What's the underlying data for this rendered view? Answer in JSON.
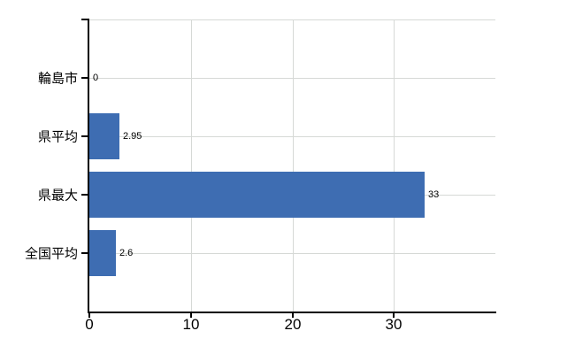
{
  "chart_data": {
    "type": "bar",
    "orientation": "horizontal",
    "title": "",
    "xlabel": "",
    "ylabel": "",
    "categories": [
      "輪島市",
      "県平均",
      "県最大",
      "全国平均"
    ],
    "values": [
      0,
      2.95,
      33,
      2.6
    ],
    "value_labels": [
      "0",
      "2.95",
      "33",
      "2.6"
    ],
    "xlim": [
      0,
      40
    ],
    "x_ticks": [
      0,
      10,
      20,
      30
    ],
    "x_tick_labels": [
      "0",
      "10",
      "20",
      "30"
    ],
    "grid": true,
    "legend": false,
    "colors": {
      "bar": "#3e6db2",
      "gridline": "#d6d9d6",
      "axis": "#000000",
      "text": "#000000",
      "background": "#ffffff"
    }
  }
}
